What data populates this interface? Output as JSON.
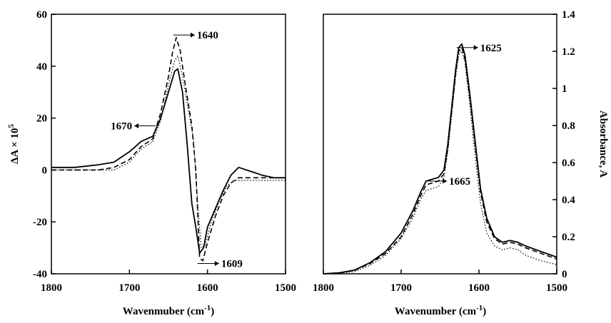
{
  "chart_data": [
    {
      "type": "line",
      "xlabel": "Wavenmuber (cm",
      "xlabel_sup": "-1",
      "xlabel_end": ")",
      "ylabel": "ΔA × 10",
      "ylabel_sup": "5",
      "xlim": [
        1800,
        1500
      ],
      "ylim": [
        -40,
        60
      ],
      "x_ticks": [
        "1800",
        "1700",
        "1600",
        "1500"
      ],
      "y_ticks": [
        "-40",
        "-20",
        "0",
        "20",
        "40",
        "60"
      ],
      "grid": false,
      "annotations": [
        {
          "text": "1640",
          "x": 1640,
          "y": 52,
          "arrow": "right"
        },
        {
          "text": "1670",
          "x": 1670,
          "y": 17,
          "arrow": "left"
        },
        {
          "text": "1609",
          "x": 1609,
          "y": -36,
          "arrow": "right"
        }
      ],
      "series": [
        {
          "style": "solid",
          "points": [
            [
              1800,
              1
            ],
            [
              1770,
              1
            ],
            [
              1740,
              2
            ],
            [
              1720,
              3
            ],
            [
              1700,
              7
            ],
            [
              1685,
              11
            ],
            [
              1670,
              13
            ],
            [
              1660,
              20
            ],
            [
              1650,
              30
            ],
            [
              1642,
              38
            ],
            [
              1638,
              39
            ],
            [
              1632,
              30
            ],
            [
              1626,
              10
            ],
            [
              1620,
              -13
            ],
            [
              1615,
              -22
            ],
            [
              1610,
              -32
            ],
            [
              1605,
              -30
            ],
            [
              1600,
              -22
            ],
            [
              1590,
              -15
            ],
            [
              1580,
              -8
            ],
            [
              1570,
              -2
            ],
            [
              1560,
              1
            ],
            [
              1550,
              0
            ],
            [
              1540,
              -1
            ],
            [
              1530,
              -2
            ],
            [
              1515,
              -3
            ],
            [
              1500,
              -3
            ]
          ]
        },
        {
          "style": "dashed",
          "points": [
            [
              1800,
              0
            ],
            [
              1770,
              0
            ],
            [
              1740,
              0
            ],
            [
              1720,
              1
            ],
            [
              1700,
              4
            ],
            [
              1685,
              9
            ],
            [
              1670,
              12
            ],
            [
              1660,
              22
            ],
            [
              1650,
              36
            ],
            [
              1645,
              45
            ],
            [
              1640,
              51
            ],
            [
              1635,
              46
            ],
            [
              1628,
              32
            ],
            [
              1620,
              17
            ],
            [
              1615,
              0
            ],
            [
              1610,
              -34
            ],
            [
              1606,
              -35
            ],
            [
              1600,
              -28
            ],
            [
              1590,
              -18
            ],
            [
              1580,
              -10
            ],
            [
              1570,
              -5
            ],
            [
              1560,
              -3
            ],
            [
              1540,
              -3
            ],
            [
              1520,
              -3
            ],
            [
              1500,
              -3
            ]
          ]
        },
        {
          "style": "dotted",
          "points": [
            [
              1800,
              0
            ],
            [
              1770,
              0
            ],
            [
              1740,
              0
            ],
            [
              1720,
              0
            ],
            [
              1700,
              3
            ],
            [
              1685,
              8
            ],
            [
              1670,
              11
            ],
            [
              1660,
              19
            ],
            [
              1650,
              33
            ],
            [
              1642,
              42
            ],
            [
              1638,
              44
            ],
            [
              1632,
              36
            ],
            [
              1625,
              24
            ],
            [
              1618,
              12
            ],
            [
              1612,
              -15
            ],
            [
              1608,
              -30
            ],
            [
              1603,
              -29
            ],
            [
              1595,
              -20
            ],
            [
              1585,
              -12
            ],
            [
              1575,
              -6
            ],
            [
              1565,
              -4
            ],
            [
              1545,
              -4
            ],
            [
              1525,
              -4
            ],
            [
              1500,
              -4
            ]
          ]
        }
      ]
    },
    {
      "type": "line",
      "xlabel": "Wavenumber (cm",
      "xlabel_sup": "-1",
      "xlabel_end": ")",
      "ylabel": "Absorbance, A",
      "xlim": [
        1800,
        1500
      ],
      "ylim": [
        0,
        1.4
      ],
      "x_ticks": [
        "1800",
        "1700",
        "1600",
        "1500"
      ],
      "y_ticks": [
        "0",
        "0.2",
        "0.4",
        "0.6",
        "0.8",
        "1",
        "1.2",
        "1.4"
      ],
      "grid": false,
      "annotations": [
        {
          "text": "1625",
          "x": 1625,
          "y": 1.22,
          "arrow": "right"
        },
        {
          "text": "1665",
          "x": 1665,
          "y": 0.5,
          "arrow": "right"
        }
      ],
      "series": [
        {
          "style": "solid",
          "points": [
            [
              1800,
              0
            ],
            [
              1780,
              0.005
            ],
            [
              1760,
              0.02
            ],
            [
              1740,
              0.06
            ],
            [
              1720,
              0.12
            ],
            [
              1700,
              0.22
            ],
            [
              1685,
              0.34
            ],
            [
              1675,
              0.44
            ],
            [
              1668,
              0.5
            ],
            [
              1660,
              0.51
            ],
            [
              1652,
              0.52
            ],
            [
              1645,
              0.56
            ],
            [
              1640,
              0.7
            ],
            [
              1635,
              0.9
            ],
            [
              1630,
              1.1
            ],
            [
              1626,
              1.22
            ],
            [
              1622,
              1.24
            ],
            [
              1618,
              1.18
            ],
            [
              1612,
              0.98
            ],
            [
              1605,
              0.72
            ],
            [
              1598,
              0.46
            ],
            [
              1590,
              0.3
            ],
            [
              1580,
              0.2
            ],
            [
              1570,
              0.17
            ],
            [
              1560,
              0.18
            ],
            [
              1550,
              0.17
            ],
            [
              1540,
              0.15
            ],
            [
              1520,
              0.12
            ],
            [
              1500,
              0.09
            ]
          ]
        },
        {
          "style": "dashed",
          "points": [
            [
              1800,
              0
            ],
            [
              1780,
              0.005
            ],
            [
              1760,
              0.018
            ],
            [
              1740,
              0.055
            ],
            [
              1720,
              0.11
            ],
            [
              1700,
              0.2
            ],
            [
              1685,
              0.32
            ],
            [
              1675,
              0.42
            ],
            [
              1668,
              0.48
            ],
            [
              1660,
              0.49
            ],
            [
              1652,
              0.5
            ],
            [
              1645,
              0.54
            ],
            [
              1640,
              0.68
            ],
            [
              1635,
              0.88
            ],
            [
              1630,
              1.08
            ],
            [
              1626,
              1.2
            ],
            [
              1622,
              1.22
            ],
            [
              1618,
              1.16
            ],
            [
              1612,
              0.96
            ],
            [
              1605,
              0.7
            ],
            [
              1598,
              0.44
            ],
            [
              1590,
              0.28
            ],
            [
              1580,
              0.19
            ],
            [
              1570,
              0.16
            ],
            [
              1560,
              0.17
            ],
            [
              1550,
              0.16
            ],
            [
              1540,
              0.14
            ],
            [
              1520,
              0.11
            ],
            [
              1500,
              0.08
            ]
          ]
        },
        {
          "style": "dotted",
          "points": [
            [
              1800,
              0
            ],
            [
              1780,
              0.003
            ],
            [
              1760,
              0.012
            ],
            [
              1740,
              0.045
            ],
            [
              1720,
              0.1
            ],
            [
              1700,
              0.19
            ],
            [
              1685,
              0.3
            ],
            [
              1675,
              0.4
            ],
            [
              1668,
              0.45
            ],
            [
              1660,
              0.46
            ],
            [
              1652,
              0.47
            ],
            [
              1645,
              0.52
            ],
            [
              1640,
              0.66
            ],
            [
              1635,
              0.86
            ],
            [
              1630,
              1.06
            ],
            [
              1626,
              1.18
            ],
            [
              1622,
              1.2
            ],
            [
              1618,
              1.14
            ],
            [
              1612,
              0.92
            ],
            [
              1605,
              0.64
            ],
            [
              1598,
              0.38
            ],
            [
              1590,
              0.22
            ],
            [
              1580,
              0.15
            ],
            [
              1570,
              0.13
            ],
            [
              1560,
              0.14
            ],
            [
              1550,
              0.13
            ],
            [
              1540,
              0.1
            ],
            [
              1520,
              0.07
            ],
            [
              1500,
              0.05
            ]
          ]
        }
      ]
    }
  ]
}
